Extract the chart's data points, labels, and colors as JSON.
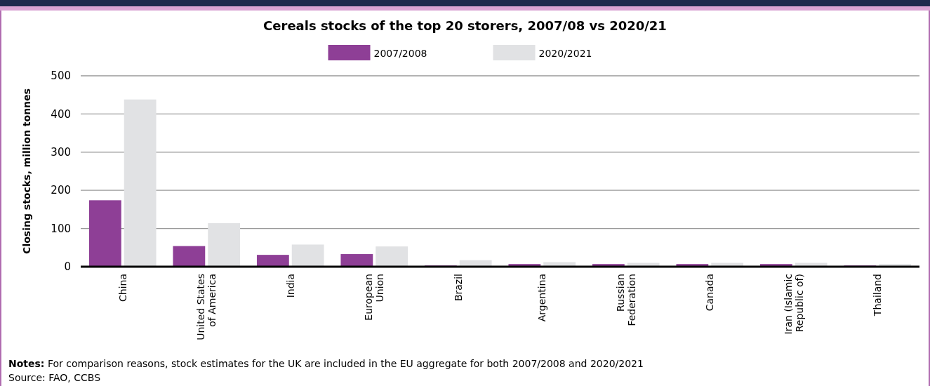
{
  "chart_data": {
    "type": "bar",
    "title": "Cereals stocks of the top 20 storers, 2007/08 vs 2020/21",
    "ylabel": "Closing stocks, million tonnes",
    "categories": [
      "China",
      "United States of America",
      "India",
      "European Union",
      "Brazil",
      "Argentina",
      "Russian Federation",
      "Canada",
      "Iran (Islamic Republic of)",
      "Thailand"
    ],
    "series": [
      {
        "name": "2007/2008",
        "color": "#8e3f96",
        "values": [
          174,
          54,
          31,
          33,
          3,
          7,
          7,
          7,
          7,
          3
        ]
      },
      {
        "name": "2020/2021",
        "color": "#e1e2e4",
        "values": [
          438,
          114,
          58,
          53,
          17,
          12,
          10,
          10,
          10,
          7
        ]
      }
    ],
    "ylim": [
      0,
      500
    ],
    "yticks": [
      0,
      100,
      200,
      300,
      400,
      500
    ],
    "grid": "y",
    "legend": "top",
    "annotations": [
      "Notes: For comparison reasons, stock estimates for the UK are included in the EU aggregate for both 2007/2008 and 2020/2021",
      "Source: FAO, CCBS"
    ]
  }
}
